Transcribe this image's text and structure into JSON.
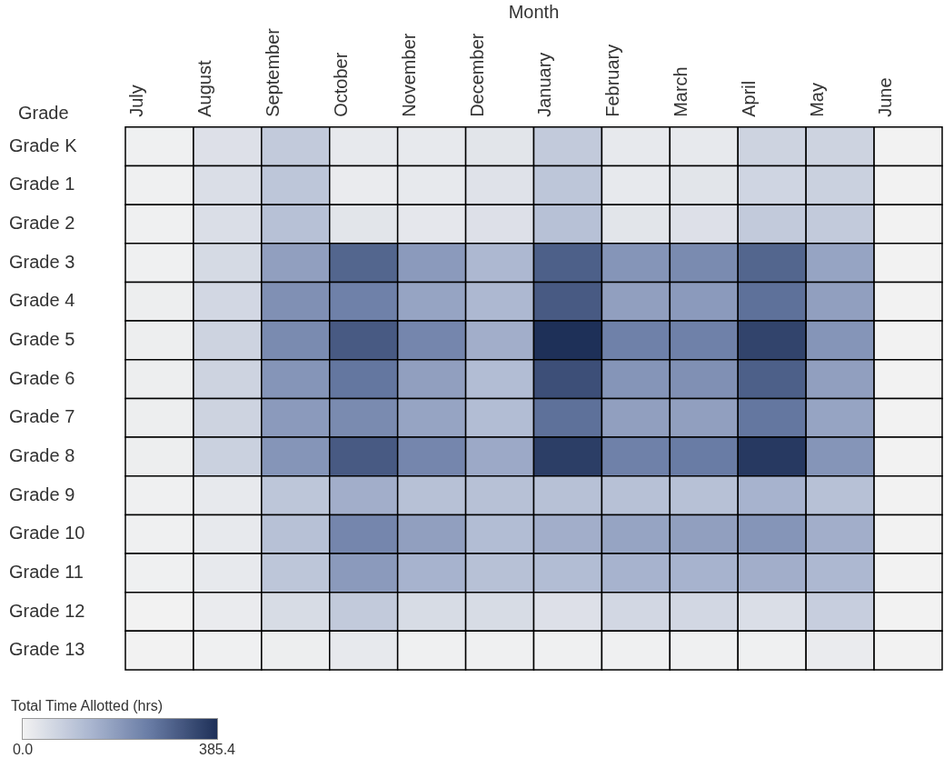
{
  "chart_data": {
    "type": "heatmap",
    "xlabel": "Month",
    "ylabel": "Grade",
    "clabel": "Total Time Allotted (hrs)",
    "categories": [
      "July",
      "August",
      "September",
      "October",
      "November",
      "December",
      "January",
      "February",
      "March",
      "April",
      "May",
      "June"
    ],
    "y_categories": [
      "Grade K",
      "Grade 1",
      "Grade 2",
      "Grade 3",
      "Grade 4",
      "Grade 5",
      "Grade 6",
      "Grade 7",
      "Grade 8",
      "Grade 9",
      "Grade 10",
      "Grade 11",
      "Grade 12",
      "Grade 13"
    ],
    "cells": [
      [
        5,
        40,
        90,
        20,
        20,
        30,
        90,
        20,
        20,
        70,
        70,
        0
      ],
      [
        5,
        45,
        100,
        15,
        20,
        35,
        100,
        20,
        30,
        65,
        75,
        0
      ],
      [
        5,
        45,
        110,
        30,
        25,
        40,
        110,
        30,
        40,
        90,
        90,
        0
      ],
      [
        5,
        55,
        180,
        290,
        190,
        130,
        300,
        200,
        220,
        290,
        170,
        0
      ],
      [
        10,
        60,
        210,
        240,
        170,
        130,
        310,
        180,
        190,
        270,
        180,
        0
      ],
      [
        10,
        70,
        220,
        310,
        230,
        150,
        385.4,
        240,
        240,
        350,
        200,
        0
      ],
      [
        10,
        70,
        200,
        260,
        180,
        120,
        330,
        200,
        210,
        300,
        180,
        0
      ],
      [
        10,
        70,
        190,
        220,
        170,
        120,
        270,
        180,
        180,
        260,
        170,
        0
      ],
      [
        10,
        75,
        200,
        310,
        230,
        160,
        360,
        240,
        250,
        370,
        200,
        0
      ],
      [
        5,
        20,
        100,
        150,
        110,
        110,
        110,
        110,
        110,
        140,
        110,
        0
      ],
      [
        5,
        20,
        110,
        230,
        180,
        120,
        150,
        170,
        180,
        200,
        150,
        0
      ],
      [
        5,
        20,
        100,
        190,
        140,
        110,
        120,
        140,
        140,
        150,
        130,
        0
      ],
      [
        0,
        15,
        50,
        90,
        50,
        50,
        40,
        60,
        60,
        45,
        80,
        0
      ],
      [
        0,
        5,
        10,
        20,
        5,
        5,
        5,
        5,
        5,
        5,
        15,
        0
      ]
    ],
    "clim": [
      0,
      385.4
    ],
    "cticks": [
      {
        "value": 0,
        "label": "0.0"
      },
      385.4
    ]
  }
}
